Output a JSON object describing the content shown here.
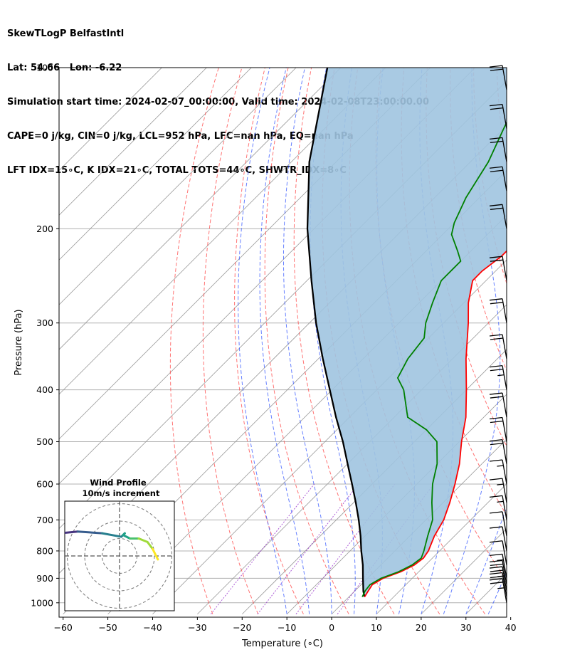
{
  "header": {
    "line1": "SkewTLogP BelfastIntl",
    "line2": "Lat: 54.66   Lon: -6.22",
    "line3": "Simulation start time: 2024-02-07_00:00:00, Valid time: 2024-02-08T23:00:00.00",
    "line4": "CAPE=0 j/kg, CIN=0 j/kg, LCL=952 hPa, LFC=nan hPa, EQ=nan hPa",
    "line5": "LFT IDX=15∘C, K IDX=21∘C, TOTAL TOTS=44∘C, SHWTR_IDX=8∘C"
  },
  "axes": {
    "xlabel": "Temperature (∘C)",
    "ylabel": "Pressure (hPa)",
    "x_ticks": [
      "−60",
      "−50",
      "−40",
      "−30",
      "−20",
      "−10",
      "0",
      "10",
      "20",
      "30",
      "40"
    ],
    "y_ticks": [
      "100",
      "200",
      "300",
      "400",
      "500",
      "600",
      "700",
      "800",
      "900",
      "1000"
    ]
  },
  "inset": {
    "title1": "Wind Profile",
    "title2": "10m/s increment"
  },
  "colors": {
    "temperature": "#ff0000",
    "dewpoint": "#008000",
    "parcel": "#000000",
    "cape_fill": "#a0c4e0",
    "dry_adiabat": "#ff4444",
    "moist_adiabat": "#3355ff",
    "mixing_ratio": "#9933cc",
    "isotherm": "#999999"
  },
  "chart_data": {
    "type": "skewt",
    "xlim": [
      -60,
      40
    ],
    "ylim": [
      1050,
      100
    ],
    "skew_deg_per_log": "45",
    "temperature": [
      {
        "p": 975,
        "t": 3.5
      },
      {
        "p": 950,
        "t": 3.0
      },
      {
        "p": 925,
        "t": 2.5
      },
      {
        "p": 900,
        "t": 3.5
      },
      {
        "p": 875,
        "t": 6.0
      },
      {
        "p": 850,
        "t": 7.5
      },
      {
        "p": 825,
        "t": 8.0
      },
      {
        "p": 800,
        "t": 7.5
      },
      {
        "p": 750,
        "t": 5.5
      },
      {
        "p": 700,
        "t": 4.0
      },
      {
        "p": 650,
        "t": 1.5
      },
      {
        "p": 600,
        "t": -1.5
      },
      {
        "p": 550,
        "t": -5.0
      },
      {
        "p": 500,
        "t": -9.5
      },
      {
        "p": 450,
        "t": -14.0
      },
      {
        "p": 400,
        "t": -20.0
      },
      {
        "p": 350,
        "t": -27.0
      },
      {
        "p": 300,
        "t": -34.5
      },
      {
        "p": 275,
        "t": -39.0
      },
      {
        "p": 250,
        "t": -43.0
      },
      {
        "p": 240,
        "t": -43.0
      },
      {
        "p": 225,
        "t": -42.0
      },
      {
        "p": 210,
        "t": -42.0
      },
      {
        "p": 200,
        "t": -44.0
      },
      {
        "p": 180,
        "t": -47.5
      },
      {
        "p": 160,
        "t": -51.5
      },
      {
        "p": 140,
        "t": -54.5
      },
      {
        "p": 120,
        "t": -57.0
      },
      {
        "p": 100,
        "t": -59.0
      }
    ],
    "dewpoint": [
      {
        "p": 975,
        "t": 3.0
      },
      {
        "p": 950,
        "t": 2.3
      },
      {
        "p": 925,
        "t": 2.0
      },
      {
        "p": 900,
        "t": 3.0
      },
      {
        "p": 875,
        "t": 5.5
      },
      {
        "p": 850,
        "t": 7.0
      },
      {
        "p": 825,
        "t": 7.5
      },
      {
        "p": 800,
        "t": 6.5
      },
      {
        "p": 750,
        "t": 4.0
      },
      {
        "p": 700,
        "t": 1.5
      },
      {
        "p": 650,
        "t": -2.5
      },
      {
        "p": 600,
        "t": -6.5
      },
      {
        "p": 550,
        "t": -10.0
      },
      {
        "p": 500,
        "t": -15.0
      },
      {
        "p": 475,
        "t": -20.0
      },
      {
        "p": 450,
        "t": -27.0
      },
      {
        "p": 400,
        "t": -34.0
      },
      {
        "p": 380,
        "t": -38.0
      },
      {
        "p": 350,
        "t": -40.0
      },
      {
        "p": 320,
        "t": -41.0
      },
      {
        "p": 300,
        "t": -44.0
      },
      {
        "p": 275,
        "t": -47.0
      },
      {
        "p": 250,
        "t": -50.0
      },
      {
        "p": 230,
        "t": -50.0
      },
      {
        "p": 220,
        "t": -53.0
      },
      {
        "p": 205,
        "t": -58.0
      },
      {
        "p": 195,
        "t": -60.0
      },
      {
        "p": 175,
        "t": -63.0
      },
      {
        "p": 150,
        "t": -66.0
      },
      {
        "p": 130,
        "t": -70.0
      },
      {
        "p": 100,
        "t": -77.0
      }
    ],
    "parcel": [
      {
        "p": 975,
        "t": 3.5
      },
      {
        "p": 952,
        "t": 2.0
      },
      {
        "p": 900,
        "t": -1.0
      },
      {
        "p": 850,
        "t": -4.0
      },
      {
        "p": 800,
        "t": -7.5
      },
      {
        "p": 750,
        "t": -11.0
      },
      {
        "p": 700,
        "t": -15.0
      },
      {
        "p": 650,
        "t": -19.5
      },
      {
        "p": 600,
        "t": -24.5
      },
      {
        "p": 550,
        "t": -30.0
      },
      {
        "p": 500,
        "t": -36.0
      },
      {
        "p": 450,
        "t": -43.0
      },
      {
        "p": 400,
        "t": -50.5
      },
      {
        "p": 350,
        "t": -59.0
      },
      {
        "p": 300,
        "t": -68.5
      },
      {
        "p": 250,
        "t": -79.0
      },
      {
        "p": 200,
        "t": -91.5
      },
      {
        "p": 150,
        "t": -106.0
      },
      {
        "p": 100,
        "t": -123.0
      }
    ],
    "wind_barbs": [
      {
        "p": 1000,
        "speed_kt": 25
      },
      {
        "p": 975,
        "speed_kt": 25
      },
      {
        "p": 950,
        "speed_kt": 25
      },
      {
        "p": 925,
        "speed_kt": 20
      },
      {
        "p": 900,
        "speed_kt": 15
      },
      {
        "p": 850,
        "speed_kt": 10
      },
      {
        "p": 800,
        "speed_kt": 10
      },
      {
        "p": 750,
        "speed_kt": 10
      },
      {
        "p": 700,
        "speed_kt": 15
      },
      {
        "p": 650,
        "speed_kt": 15
      },
      {
        "p": 600,
        "speed_kt": 15
      },
      {
        "p": 550,
        "speed_kt": 20
      },
      {
        "p": 500,
        "speed_kt": 20
      },
      {
        "p": 450,
        "speed_kt": 20
      },
      {
        "p": 400,
        "speed_kt": 25
      },
      {
        "p": 350,
        "speed_kt": 20
      },
      {
        "p": 300,
        "speed_kt": 20
      },
      {
        "p": 250,
        "speed_kt": 20
      },
      {
        "p": 200,
        "speed_kt": 20
      },
      {
        "p": 170,
        "speed_kt": 20
      },
      {
        "p": 150,
        "speed_kt": 20
      },
      {
        "p": 130,
        "speed_kt": 20
      },
      {
        "p": 110,
        "speed_kt": 20
      }
    ],
    "hodograph": {
      "ring_step_ms": 10,
      "points": [
        {
          "u": -33,
          "v": 0
        },
        {
          "u": -38,
          "v": 2
        },
        {
          "u": -39,
          "v": 6
        },
        {
          "u": -34,
          "v": 13
        },
        {
          "u": -24,
          "v": 14
        },
        {
          "u": -10,
          "v": 13
        },
        {
          "u": 1,
          "v": 11
        },
        {
          "u": 3,
          "v": 13
        },
        {
          "u": 2,
          "v": 12
        },
        {
          "u": 6,
          "v": 10
        },
        {
          "u": 11,
          "v": 10
        },
        {
          "u": 16,
          "v": 8
        },
        {
          "u": 19,
          "v": 4
        },
        {
          "u": 22,
          "v": -2
        }
      ]
    }
  }
}
